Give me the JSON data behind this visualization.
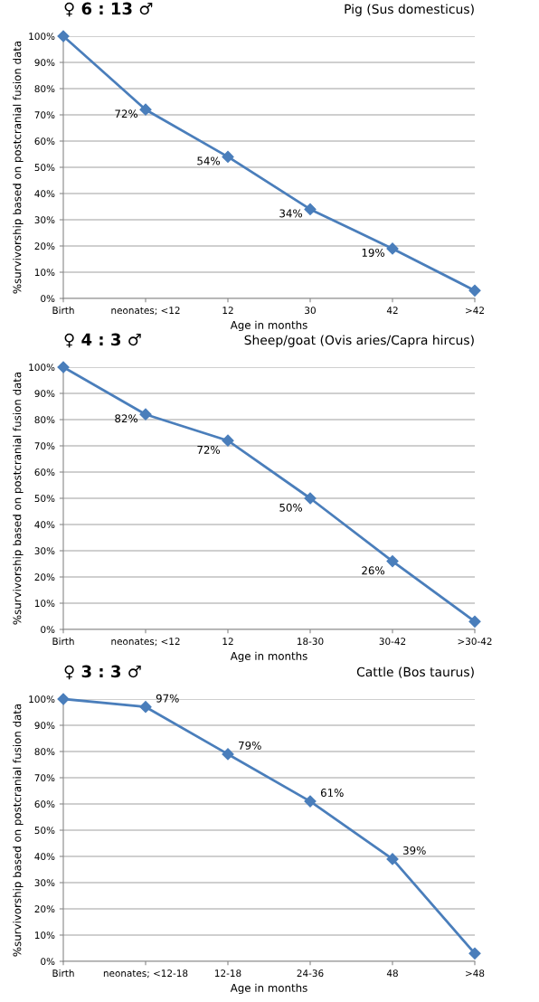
{
  "chart_data": [
    {
      "type": "line",
      "title": "Pig (Sus domesticus)",
      "subtitle": "♀ 6 : 13 ♂",
      "xlabel": "Age in months",
      "ylabel": "%survivorship based on postcranial fusion data",
      "categories": [
        "Birth",
        "neonates; <12",
        "12",
        "30",
        "42",
        ">42"
      ],
      "series": [
        {
          "color": "#4a7ebb",
          "values": [
            100,
            72,
            54,
            34,
            19,
            3
          ],
          "value_labels": [
            null,
            "72%",
            "54%",
            "34%",
            "19%",
            null
          ]
        }
      ],
      "ylim": [
        0,
        100
      ],
      "yticks": [
        {
          "value": 0,
          "label": "0%"
        },
        {
          "value": 10,
          "label": "10%"
        },
        {
          "value": 20,
          "label": "20%"
        },
        {
          "value": 30,
          "label": "30%"
        },
        {
          "value": 40,
          "label": "40%"
        },
        {
          "value": 50,
          "label": "50%"
        },
        {
          "value": 60,
          "label": "60%"
        },
        {
          "value": 70,
          "label": "70%"
        },
        {
          "value": 80,
          "label": "80%"
        },
        {
          "value": 90,
          "label": "90%"
        },
        {
          "value": 100,
          "label": "100%"
        }
      ],
      "grid": "y",
      "marker": "diamond",
      "line_style": "solid"
    },
    {
      "type": "line",
      "title": "Sheep/goat (Ovis aries/Capra hircus)",
      "subtitle": "♀ 4 : 3 ♂",
      "xlabel": "Age in months",
      "ylabel": "%survivorship based on postcranial fusion data",
      "categories": [
        "Birth",
        "neonates; <12",
        "12",
        "18-30",
        "30-42",
        ">30-42"
      ],
      "series": [
        {
          "color": "#4a7ebb",
          "values": [
            100,
            82,
            72,
            50,
            26,
            3
          ],
          "value_labels": [
            null,
            "82%",
            "72%",
            "50%",
            "26%",
            null
          ]
        }
      ],
      "ylim": [
        0,
        100
      ],
      "yticks": [
        {
          "value": 0,
          "label": "0%"
        },
        {
          "value": 10,
          "label": "10%"
        },
        {
          "value": 20,
          "label": "20%"
        },
        {
          "value": 30,
          "label": "30%"
        },
        {
          "value": 40,
          "label": "40%"
        },
        {
          "value": 50,
          "label": "50%"
        },
        {
          "value": 60,
          "label": "60%"
        },
        {
          "value": 70,
          "label": "70%"
        },
        {
          "value": 80,
          "label": "80%"
        },
        {
          "value": 90,
          "label": "90%"
        },
        {
          "value": 100,
          "label": "100%"
        }
      ],
      "grid": "y",
      "marker": "diamond",
      "line_style": "solid"
    },
    {
      "type": "line",
      "title": "Cattle (Bos taurus)",
      "subtitle": "♀ 3 : 3 ♂",
      "xlabel": "Age in months",
      "ylabel": "%survivorship based on postcranial fusion data",
      "categories": [
        "Birth",
        "neonates; <12-18",
        "12-18",
        "24-36",
        "48",
        ">48"
      ],
      "series": [
        {
          "color": "#4a7ebb",
          "values": [
            100,
            97,
            79,
            61,
            39,
            3
          ],
          "value_labels": [
            null,
            "97%",
            "79%",
            "61%",
            "39%",
            null
          ]
        }
      ],
      "ylim": [
        0,
        100
      ],
      "yticks": [
        {
          "value": 0,
          "label": "0%"
        },
        {
          "value": 10,
          "label": "10%"
        },
        {
          "value": 20,
          "label": "20%"
        },
        {
          "value": 30,
          "label": "30%"
        },
        {
          "value": 40,
          "label": "40%"
        },
        {
          "value": 50,
          "label": "50%"
        },
        {
          "value": 60,
          "label": "60%"
        },
        {
          "value": 70,
          "label": "70%"
        },
        {
          "value": 80,
          "label": "80%"
        },
        {
          "value": 90,
          "label": "90%"
        },
        {
          "value": 100,
          "label": "100%"
        }
      ],
      "grid": "y",
      "marker": "diamond",
      "line_style": "solid"
    }
  ]
}
